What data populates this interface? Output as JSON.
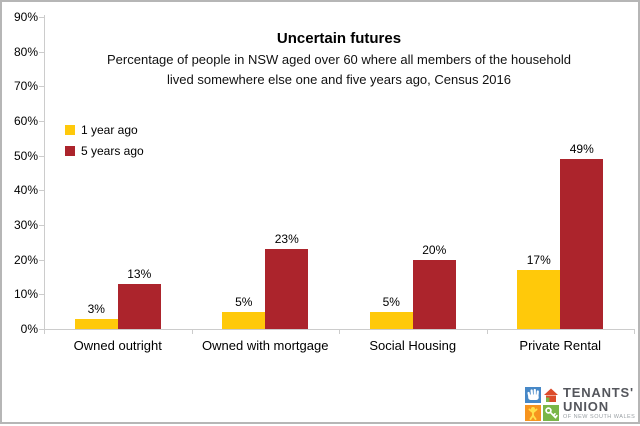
{
  "chart_data": {
    "type": "bar",
    "title": "Uncertain futures",
    "subtitle_lines": [
      "Percentage of people in NSW aged over 60 where all members of the household",
      "lived somewhere else one and five years ago, Census 2016"
    ],
    "categories": [
      "Owned outright",
      "Owned with mortgage",
      "Social Housing",
      "Private Rental"
    ],
    "series": [
      {
        "name": "1 year ago",
        "color": "#FFC90A",
        "values": [
          3,
          5,
          5,
          17
        ],
        "data_labels": [
          "3%",
          "5%",
          "5%",
          "17%"
        ]
      },
      {
        "name": "5 years ago",
        "color": "#AC242C",
        "values": [
          13,
          23,
          20,
          49
        ],
        "data_labels": [
          "13%",
          "23%",
          "20%",
          "49%"
        ]
      }
    ],
    "y_axis": {
      "min": 0,
      "max": 90,
      "tick_step": 10,
      "tick_labels": [
        "0%",
        "10%",
        "20%",
        "30%",
        "40%",
        "50%",
        "60%",
        "70%",
        "80%",
        "90%"
      ]
    },
    "legend_position": "inside-top-left",
    "grid": false,
    "axis_color": "#cccccc",
    "text_color": "#000000"
  },
  "frame": {
    "border_color": "#b6b6b6",
    "background": "#ffffff"
  },
  "logo": {
    "line1": "TENANTS'",
    "line2": "UNION",
    "line3": "OF NEW SOUTH WALES",
    "text_color": "#54565c",
    "small_text_color": "#9aa0a4",
    "icons": [
      "hand-icon",
      "house-icon",
      "person-icon",
      "key-icon"
    ],
    "colors": {
      "hand_bg": "#4788C7",
      "hand": "#ffffff",
      "house_bg": "#ffffff",
      "house": "#DC4B2B",
      "house_door": "#7AB648",
      "person_bg": "#F7941E",
      "person": "#FFE04A",
      "key_bg": "#7AB648",
      "key": "#ffffff"
    }
  }
}
